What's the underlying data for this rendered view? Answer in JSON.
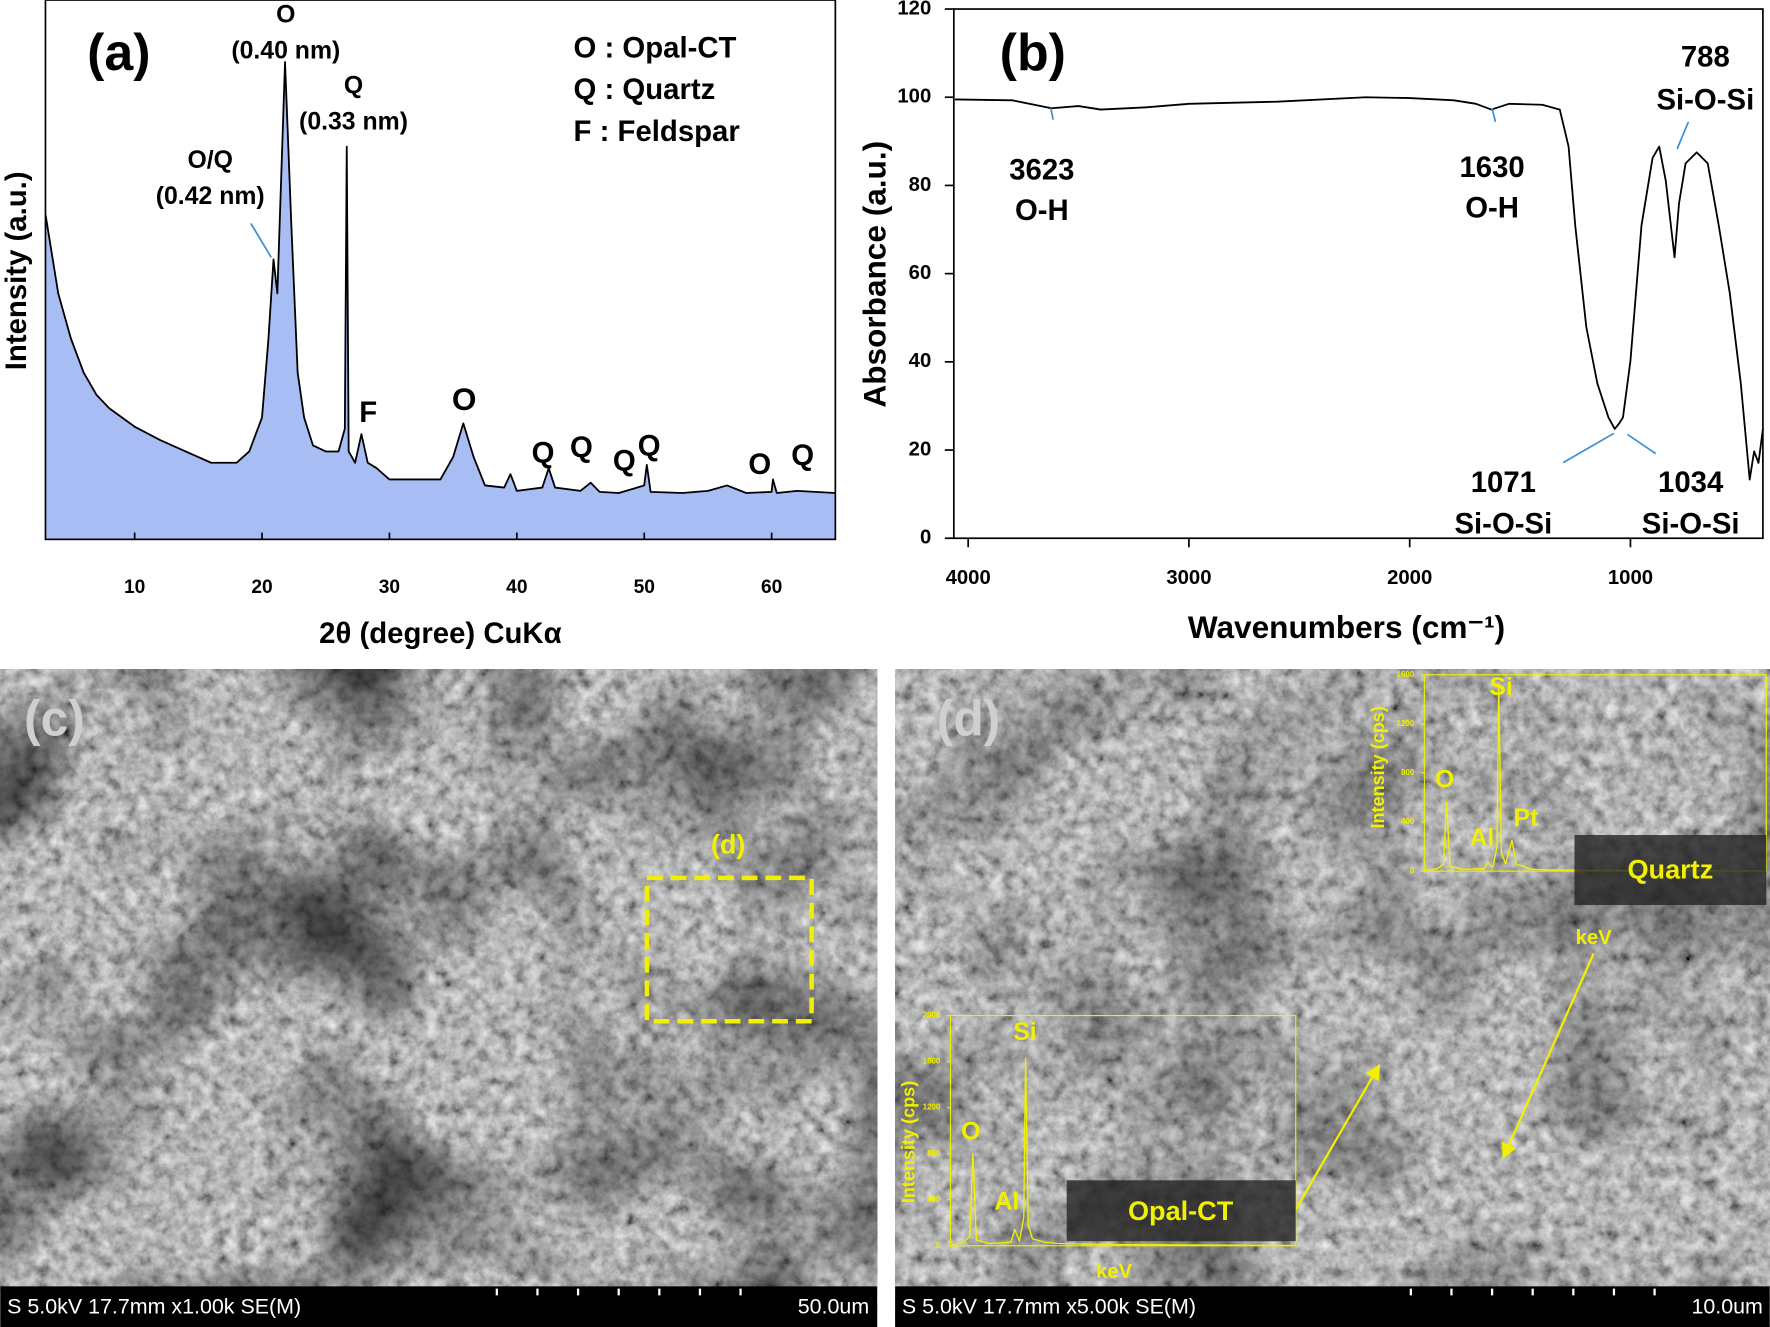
{
  "chart_data": [
    {
      "type": "line",
      "panel_label": "(a)",
      "xlabel": "2θ (degree) CuKα",
      "ylabel": "Intensity (a.u.)",
      "x": [
        3,
        4,
        5,
        6,
        7,
        8,
        10,
        12,
        14,
        16,
        18,
        19,
        20,
        20.5,
        20.9,
        21.2,
        21.8,
        22.3,
        22.8,
        23.3,
        24,
        25,
        26,
        26.5,
        26.65,
        26.8,
        27.3,
        27.8,
        28.3,
        29,
        30,
        32,
        34,
        35,
        35.8,
        36.6,
        37.5,
        39,
        39.5,
        40,
        42,
        42.5,
        43,
        45,
        45.8,
        46.5,
        48,
        50,
        50.2,
        50.5,
        53,
        55,
        56.5,
        58,
        60,
        60.1,
        60.4,
        62,
        65
      ],
      "values": [
        60.3,
        45.6,
        37.2,
        30.9,
        26.8,
        24.3,
        20.9,
        18.4,
        16.3,
        14.2,
        14.2,
        16.3,
        22.6,
        37.2,
        51.9,
        45.6,
        88.5,
        58.2,
        30.9,
        22.6,
        17.4,
        16.3,
        16.3,
        20.5,
        72.8,
        16.3,
        14.2,
        19.5,
        14.2,
        13.2,
        11.1,
        11.1,
        11.1,
        15.3,
        21.5,
        15.3,
        10.0,
        9.6,
        12.1,
        9.0,
        9.6,
        13.2,
        9.6,
        9.0,
        10.5,
        8.8,
        8.6,
        10.0,
        13.8,
        8.8,
        8.6,
        9.0,
        10.0,
        8.6,
        8.8,
        11.1,
        8.6,
        9.0,
        8.6
      ],
      "color": "#000000",
      "fill_color": "#a9bdf5",
      "xlim": [
        3,
        65
      ],
      "xticks": [
        10,
        20,
        30,
        40,
        50,
        60
      ],
      "ylim": [
        0,
        100
      ],
      "key": [
        "O : Opal-CT",
        "Q : Quartz",
        "F : Feldspar"
      ],
      "annotations": [
        [
          "O",
          "(0.40 nm)"
        ],
        [
          "Q",
          "(0.33 nm)"
        ],
        [
          "O/Q",
          "(0.42 nm)"
        ],
        [
          "F"
        ],
        [
          "O"
        ],
        [
          "Q"
        ],
        [
          "Q"
        ],
        [
          "Q"
        ],
        [
          "Q"
        ],
        [
          "O"
        ],
        [
          "Q"
        ]
      ]
    },
    {
      "type": "line",
      "panel_label": "(b)",
      "xlabel": "Wavenumbers (cm⁻¹)",
      "ylabel": "Absorbance (a.u.)",
      "x": [
        4060,
        3800,
        3623,
        3500,
        3400,
        3200,
        3000,
        2600,
        2200,
        2000,
        1800,
        1700,
        1630,
        1550,
        1400,
        1320,
        1280,
        1250,
        1200,
        1150,
        1100,
        1071,
        1050,
        1034,
        1000,
        950,
        900,
        870,
        840,
        800,
        780,
        750,
        700,
        650,
        600,
        550,
        500,
        460,
        440,
        420,
        400
      ],
      "values": [
        99.5,
        99.3,
        97.5,
        98,
        97.2,
        97.7,
        98.5,
        99,
        100,
        99.8,
        99.3,
        98.5,
        97.2,
        98.5,
        98.3,
        97.2,
        88.8,
        70.9,
        47.9,
        35.1,
        27.4,
        24.8,
        26.1,
        27.4,
        40.2,
        70.9,
        86.2,
        88.8,
        81.1,
        63.7,
        76,
        85,
        87.5,
        85,
        70.9,
        55.5,
        35.1,
        13.3,
        19.7,
        17.1,
        24.8
      ],
      "color": "#000000",
      "xlim": [
        4065,
        400
      ],
      "xticks": [
        4000,
        3000,
        2000,
        1000
      ],
      "ylim": [
        0,
        120
      ],
      "yticks": [
        0,
        20,
        40,
        60,
        80,
        100,
        120
      ],
      "annotations": [
        [
          "3623",
          "O-H"
        ],
        [
          "1630",
          "O-H"
        ],
        [
          "788",
          "Si-O-Si"
        ],
        [
          "1071",
          "Si-O-Si"
        ],
        [
          "1034",
          "Si-O-Si"
        ]
      ]
    },
    {
      "type": "line",
      "inset_label": "Quartz",
      "xlabel": "keV",
      "ylabel": "Intensity (cps)",
      "x": [
        0,
        0.3,
        0.45,
        0.52,
        0.6,
        0.9,
        1.4,
        1.49,
        1.6,
        1.7,
        1.74,
        1.8,
        1.9,
        2.05,
        2.15,
        2.5,
        3,
        4,
        6,
        8
      ],
      "values": [
        0,
        20,
        60,
        560,
        40,
        15,
        20,
        70,
        30,
        200,
        1530,
        150,
        60,
        250,
        60,
        15,
        10,
        8,
        5,
        3
      ],
      "color": "#f0f000",
      "xlim": [
        0,
        8
      ],
      "ylim": [
        0,
        1600
      ],
      "yticks": [
        0,
        400,
        800,
        1200,
        1600
      ],
      "annotations": [
        [
          "O"
        ],
        [
          "Al"
        ],
        [
          "Si"
        ],
        [
          "Pt"
        ]
      ]
    },
    {
      "type": "line",
      "inset_label": "Opal-CT",
      "xlabel": "keV",
      "ylabel": "Intensity (cps)",
      "x": [
        0,
        0.3,
        0.45,
        0.52,
        0.6,
        0.9,
        1.4,
        1.49,
        1.6,
        1.7,
        1.74,
        1.8,
        1.9,
        2.2,
        2.5,
        3,
        4,
        6,
        8
      ],
      "values": [
        0,
        30,
        80,
        800,
        50,
        20,
        30,
        140,
        40,
        250,
        1630,
        180,
        60,
        30,
        20,
        15,
        10,
        6,
        3
      ],
      "color": "#f0f000",
      "xlim": [
        0,
        8
      ],
      "ylim": [
        0,
        2000
      ],
      "yticks": [
        0,
        400,
        800,
        1200,
        1600,
        2000
      ],
      "annotations": [
        [
          "O"
        ],
        [
          "Al"
        ],
        [
          "Si"
        ]
      ]
    }
  ],
  "sem_images": [
    {
      "panel_label": "(c)",
      "region_label": "(d)",
      "info": "S 5.0kV 17.7mm x1.00k SE(M)",
      "scale": "50.0um"
    },
    {
      "panel_label": "(d)",
      "info": "S 5.0kV 17.7mm x5.00k SE(M)",
      "scale": "10.0um"
    }
  ]
}
